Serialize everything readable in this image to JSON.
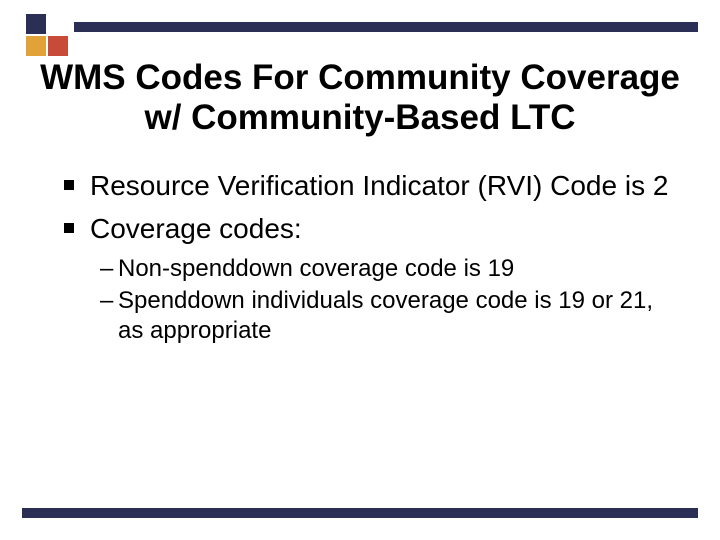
{
  "colors": {
    "navy": "#2b2f55",
    "orange": "#e2a23a",
    "red": "#c84b3a",
    "white": "#ffffff",
    "black": "#000000"
  },
  "logo": {
    "tl": "#2b2f55",
    "tr": "#ffffff",
    "bl": "#e2a23a",
    "br": "#c84b3a"
  },
  "bars": {
    "color": "#2b2f55"
  },
  "title": "WMS Codes For Community Coverage w/ Community-Based LTC",
  "bullets": [
    {
      "text": "Resource Verification Indicator (RVI) Code is 2",
      "sub": []
    },
    {
      "text": "Coverage codes:",
      "sub": [
        "Non-spenddown coverage code is 19",
        "Spenddown individuals coverage code is 19 or 21, as appropriate"
      ]
    }
  ],
  "typography": {
    "title_fontsize": 35,
    "bullet_fontsize": 28,
    "subbullet_fontsize": 24,
    "font_family": "Arial"
  }
}
